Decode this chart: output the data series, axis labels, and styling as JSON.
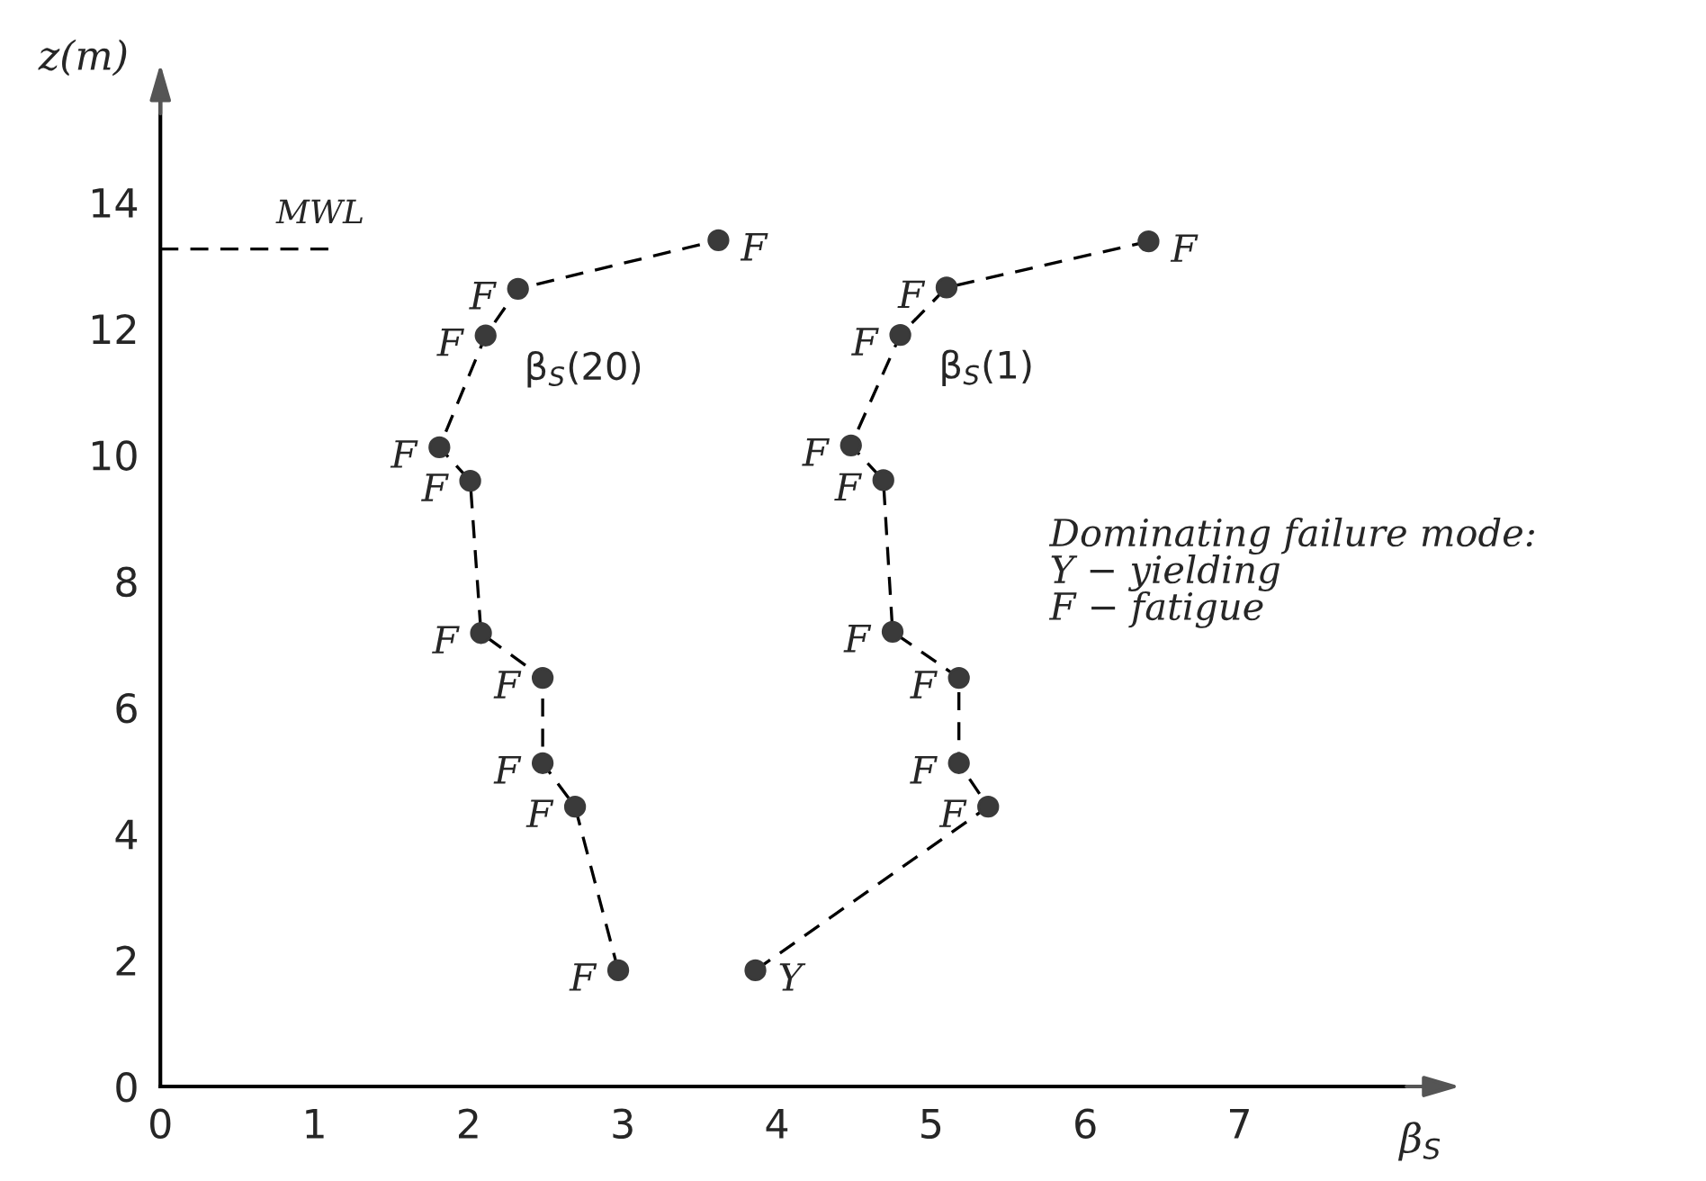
{
  "chart_data": {
    "type": "line",
    "xlabel": "β$_{S}$",
    "ylabel": "z(m)",
    "xlim": [
      0,
      8.3
    ],
    "ylim": [
      0,
      15.8
    ],
    "xticks": [
      0,
      1,
      2,
      3,
      4,
      5,
      6,
      7
    ],
    "yticks": [
      0,
      2,
      4,
      6,
      8,
      10,
      12,
      14
    ],
    "grid": false,
    "marker": "circle",
    "line_style": "dashed",
    "series": [
      {
        "name": "β$_{S}$(20)",
        "color": "#3a3a3a",
        "x": [
          2.97,
          2.69,
          2.48,
          2.48,
          2.08,
          2.01,
          1.81,
          2.11,
          2.32,
          3.62
        ],
        "values": [
          1.84,
          4.43,
          5.12,
          6.47,
          7.18,
          9.59,
          10.12,
          11.89,
          12.63,
          13.4
        ],
        "value_labels": [
          "F",
          "F",
          "F",
          "F",
          "F",
          "F",
          "F",
          "F",
          "F",
          "F"
        ]
      },
      {
        "name": "β$_{S}$(1)",
        "color": "#3a3a3a",
        "x": [
          3.86,
          5.37,
          5.18,
          5.18,
          4.75,
          4.69,
          4.48,
          4.8,
          5.1,
          6.41
        ],
        "values": [
          1.84,
          4.43,
          5.12,
          6.47,
          7.2,
          9.6,
          10.15,
          11.9,
          12.65,
          13.38
        ],
        "value_labels": [
          "Y",
          "F",
          "F",
          "F",
          "F",
          "F",
          "F",
          "F",
          "F",
          "F"
        ]
      }
    ],
    "ref_lines": [
      {
        "axis": "y",
        "value": 13.26,
        "label": "MWL",
        "line_style": "dashed"
      }
    ],
    "annotations": [
      "Dominating failure mode:\nY − yielding\nF − fatigue"
    ]
  }
}
